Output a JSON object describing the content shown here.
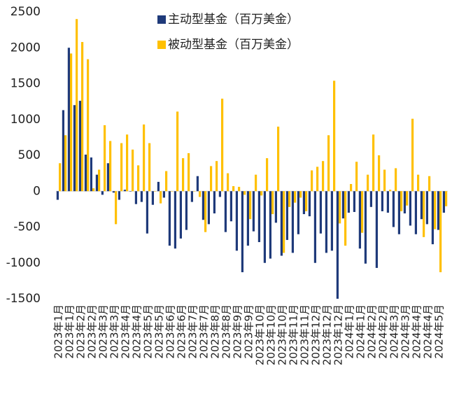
{
  "chart_data": {
    "type": "bar",
    "categories": [
      "2023年1月",
      null,
      "2023年1月",
      null,
      "2023年2月",
      null,
      "2023年2月",
      null,
      "2023年3月",
      null,
      "2023年3月",
      null,
      "2023年4月",
      null,
      "2023年4月",
      null,
      "2023年5月",
      null,
      "2023年5月",
      null,
      "2023年6月",
      null,
      "2023年6月",
      null,
      "2023年7月",
      null,
      "2023年7月",
      null,
      "2023年8月",
      null,
      "2023年8月",
      null,
      "2023年9月",
      null,
      "2023年9月",
      null,
      "2023年10月",
      null,
      "2023年10月",
      null,
      "2023年10月",
      null,
      "2023年11月",
      null,
      "2023年11月",
      null,
      "2023年12月",
      null,
      "2023年12月",
      null,
      "2023年12月",
      null,
      "2024年1月",
      null,
      "2024年1月",
      null,
      "2024年2月",
      null,
      "2024年2月",
      null,
      "2024年3月",
      null,
      "2024年3月",
      null,
      "2024年4月",
      null,
      "2024年4月",
      null,
      "2024年5月",
      null
    ],
    "series": [
      {
        "name": "主动型基金（百万美金）",
        "color": "#1f3a7a",
        "values": [
          -120,
          1130,
          2000,
          1200,
          1260,
          510,
          470,
          230,
          -50,
          390,
          -20,
          -120,
          20,
          0,
          -180,
          -150,
          -590,
          -190,
          130,
          -90,
          -760,
          -800,
          -660,
          -540,
          -150,
          210,
          -400,
          -460,
          -310,
          -80,
          -570,
          -420,
          -830,
          -1130,
          -760,
          -560,
          -710,
          -1000,
          -940,
          -440,
          -900,
          -680,
          -860,
          -600,
          -320,
          -350,
          -1000,
          -590,
          -860,
          -830,
          -1500,
          -380,
          -300,
          -290,
          -800,
          -1010,
          -220,
          -1070,
          -280,
          -300,
          -500,
          -600,
          -310,
          -480,
          -600,
          -390,
          -460,
          -740,
          -540,
          -300
        ]
      },
      {
        "name": "被动型基金（百万美金）",
        "color": "#ffc000",
        "values": [
          390,
          780,
          1920,
          2400,
          2080,
          1840,
          40,
          300,
          920,
          700,
          -460,
          670,
          790,
          580,
          360,
          930,
          670,
          0,
          -170,
          280,
          0,
          1110,
          460,
          530,
          0,
          -80,
          -570,
          350,
          420,
          1290,
          250,
          70,
          60,
          -50,
          -390,
          230,
          -60,
          460,
          -320,
          900,
          -860,
          -220,
          -160,
          -90,
          -280,
          290,
          340,
          420,
          780,
          1540,
          -450,
          -760,
          100,
          410,
          -580,
          230,
          790,
          500,
          300,
          20,
          320,
          -280,
          -200,
          1010,
          230,
          -640,
          210,
          -530,
          -1130,
          -210
        ]
      }
    ],
    "ylim": [
      -1500,
      2500
    ],
    "yticks": [
      -1500,
      -1000,
      -500,
      0,
      500,
      1000,
      1500,
      2000,
      2500
    ],
    "legend": "top"
  }
}
